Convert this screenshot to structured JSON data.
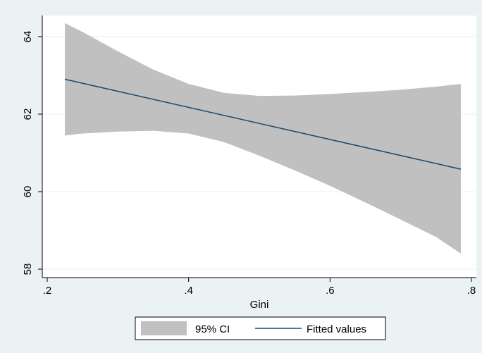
{
  "chart_data": {
    "type": "area",
    "title": "",
    "xlabel": "Gini",
    "ylabel": "",
    "xlim": [
      0.2,
      0.8
    ],
    "ylim": [
      58,
      64
    ],
    "x_ticks": [
      {
        "value": 0.2,
        "label": ".2"
      },
      {
        "value": 0.4,
        "label": ".4"
      },
      {
        "value": 0.6,
        "label": ".6"
      },
      {
        "value": 0.8,
        "label": ".8"
      }
    ],
    "y_ticks": [
      {
        "value": 58,
        "label": "58"
      },
      {
        "value": 60,
        "label": "60"
      },
      {
        "value": 62,
        "label": "62"
      },
      {
        "value": 64,
        "label": "64"
      }
    ],
    "grid": true,
    "legend_placement": "bottom",
    "series": [
      {
        "name": "95% CI",
        "kind": "band",
        "color": "#c0c0c0",
        "x": [
          0.225,
          0.25,
          0.3,
          0.35,
          0.4,
          0.45,
          0.5,
          0.55,
          0.6,
          0.65,
          0.7,
          0.75,
          0.785
        ],
        "upper": [
          64.35,
          64.12,
          63.62,
          63.15,
          62.78,
          62.55,
          62.47,
          62.48,
          62.52,
          62.57,
          62.63,
          62.71,
          62.78
        ],
        "lower": [
          61.45,
          61.5,
          61.55,
          61.57,
          61.5,
          61.28,
          60.93,
          60.55,
          60.15,
          59.72,
          59.28,
          58.83,
          58.4
        ]
      },
      {
        "name": "Fitted values",
        "kind": "line",
        "color": "#1a476f",
        "x": [
          0.225,
          0.785
        ],
        "y": [
          62.9,
          60.58
        ]
      }
    ]
  }
}
